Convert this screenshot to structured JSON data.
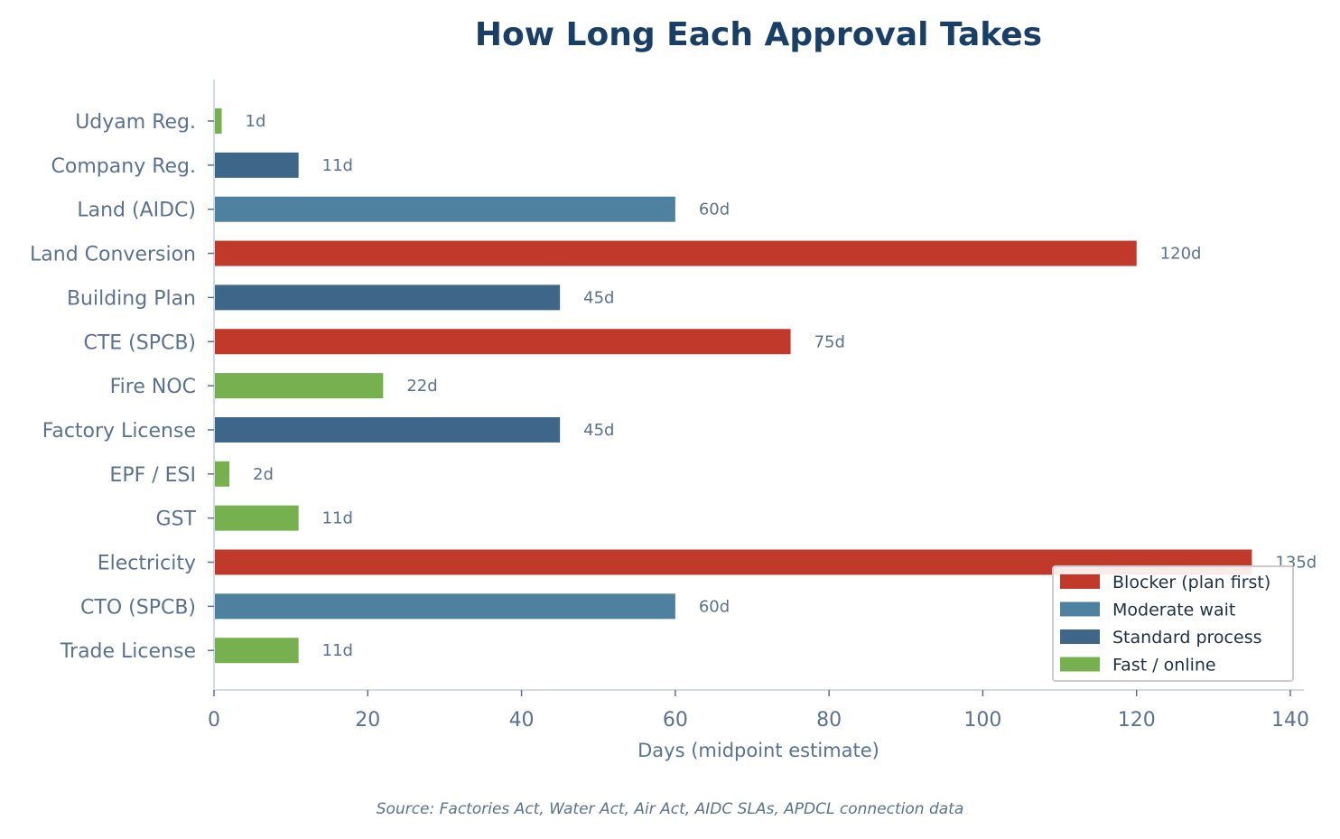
{
  "chart_data": {
    "type": "bar",
    "orientation": "horizontal",
    "title": "How Long Each Approval Takes",
    "xlabel": "Days (midpoint estimate)",
    "ylabel": "",
    "source": "Source: Factories Act, Water Act, Air Act, AIDC SLAs, APDCL connection data",
    "xlim": [
      0,
      140
    ],
    "xticks": [
      0,
      20,
      40,
      60,
      80,
      100,
      120,
      140
    ],
    "grid": false,
    "legend_position": "lower-right",
    "value_suffix": "d",
    "categories": [
      "Udyam Reg.",
      "Company Reg.",
      "Land (AIDC)",
      "Land Conversion",
      "Building Plan",
      "CTE (SPCB)",
      "Fire NOC",
      "Factory License",
      "EPF / ESI",
      "GST",
      "Electricity",
      "CTO (SPCB)",
      "Trade License"
    ],
    "values": [
      1,
      11,
      60,
      120,
      45,
      75,
      22,
      45,
      2,
      11,
      135,
      60,
      11
    ],
    "groups": [
      "fast",
      "standard",
      "moderate",
      "blocker",
      "standard",
      "blocker",
      "fast",
      "standard",
      "fast",
      "fast",
      "blocker",
      "moderate",
      "fast"
    ],
    "legend": [
      {
        "key": "blocker",
        "label": "Blocker (plan first)",
        "color": "#c0392b"
      },
      {
        "key": "moderate",
        "label": "Moderate wait",
        "color": "#4e81a0"
      },
      {
        "key": "standard",
        "label": "Standard process",
        "color": "#3d6689"
      },
      {
        "key": "fast",
        "label": "Fast / online",
        "color": "#77b14f"
      }
    ],
    "colors": {
      "title": "#1a3f66",
      "text": "#5a7290",
      "axis": "#d0dbe6",
      "legend_text": "#1f2f44"
    }
  }
}
